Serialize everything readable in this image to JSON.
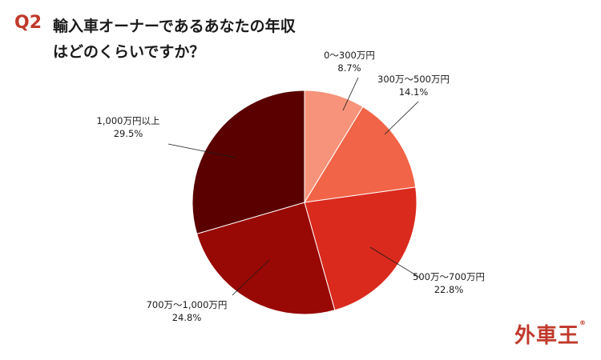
{
  "question": {
    "number": "Q2",
    "title_line1": "輸入車オーナーであるあなたの年収",
    "title_line2": "はどのくらいですか？"
  },
  "logo": {
    "text": "外車王",
    "mark": "®"
  },
  "chart_data": {
    "type": "pie",
    "title": "輸入車オーナーであるあなたの年収はどのくらいですか？",
    "start_angle_deg": 0,
    "direction": "clockwise",
    "slices": [
      {
        "label": "0〜300万円",
        "value": 8.7,
        "display": "8.7%",
        "color": "#f7937a"
      },
      {
        "label": "300万〜500万円",
        "value": 14.1,
        "display": "14.1%",
        "color": "#f26447"
      },
      {
        "label": "500万〜700万円",
        "value": 22.8,
        "display": "22.8%",
        "color": "#da2a1e"
      },
      {
        "label": "700万〜1,000万円",
        "value": 24.8,
        "display": "24.8%",
        "color": "#980805"
      },
      {
        "label": "1,000万円以上",
        "value": 29.5,
        "display": "29.5%",
        "color": "#5a0000"
      }
    ]
  }
}
